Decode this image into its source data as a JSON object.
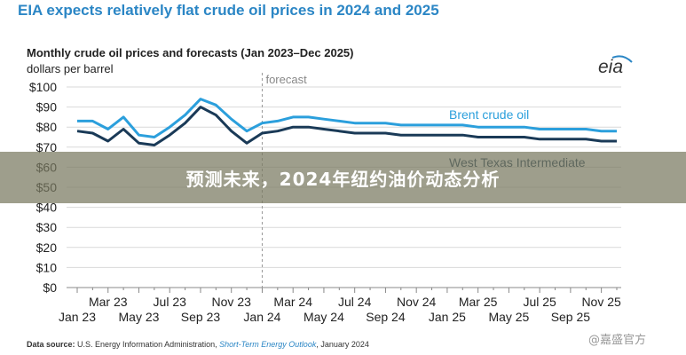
{
  "headline": "EIA expects relatively flat crude oil prices in 2024 and 2025",
  "logo_text": "eia",
  "overlay_caption": "预测未来，2024年纽约油价动态分析",
  "source": {
    "label": "Data source:",
    "org": " U.S. Energy Information Administration, ",
    "publication": "Short-Term Energy Outlook",
    "date": ", January 2024"
  },
  "watermark": "@嘉盛官方",
  "colors": {
    "brent": "#2b9fdc",
    "wti": "#1a3a57",
    "headline": "#2b86c5",
    "grid": "#d9d9d9"
  },
  "chart_data": {
    "type": "line",
    "title": "Monthly crude oil prices and forecasts (Jan 2023–Dec 2025)",
    "ylabel": "dollars per barrel",
    "xlabel": "",
    "ylim": [
      0,
      100
    ],
    "y_ticks": [
      "$0",
      "$10",
      "$20",
      "$30",
      "$40",
      "$50",
      "$60",
      "$70",
      "$80",
      "$90",
      "$100"
    ],
    "x": [
      "Jan 23",
      "Feb 23",
      "Mar 23",
      "Apr 23",
      "May 23",
      "Jun 23",
      "Jul 23",
      "Aug 23",
      "Sep 23",
      "Oct 23",
      "Nov 23",
      "Dec 23",
      "Jan 24",
      "Feb 24",
      "Mar 24",
      "Apr 24",
      "May 24",
      "Jun 24",
      "Jul 24",
      "Aug 24",
      "Sep 24",
      "Oct 24",
      "Nov 24",
      "Dec 24",
      "Jan 25",
      "Feb 25",
      "Mar 25",
      "Apr 25",
      "May 25",
      "Jun 25",
      "Jul 25",
      "Aug 25",
      "Sep 25",
      "Oct 25",
      "Nov 25",
      "Dec 25"
    ],
    "x_tick_labels_upper": [
      "Mar 23",
      "Jul 23",
      "Nov 23",
      "Mar 24",
      "Jul 24",
      "Nov 24",
      "Mar 25",
      "Jul 25",
      "Nov 25"
    ],
    "x_tick_labels_lower": [
      "Jan 23",
      "May 23",
      "Sep 23",
      "Jan 24",
      "May 24",
      "Sep 24",
      "Jan 25",
      "May 25",
      "Sep 25"
    ],
    "forecast_label": "forecast",
    "forecast_start": "Jan 24",
    "series": [
      {
        "name": "Brent crude oil",
        "values": [
          83,
          83,
          79,
          85,
          76,
          75,
          80,
          86,
          94,
          91,
          84,
          78,
          82,
          83,
          85,
          85,
          84,
          83,
          82,
          82,
          82,
          81,
          81,
          81,
          81,
          81,
          80,
          80,
          80,
          80,
          79,
          79,
          79,
          79,
          78,
          78
        ]
      },
      {
        "name": "West Texas Intermediate",
        "values": [
          78,
          77,
          73,
          79,
          72,
          71,
          76,
          82,
          90,
          86,
          78,
          72,
          77,
          78,
          80,
          80,
          79,
          78,
          77,
          77,
          77,
          76,
          76,
          76,
          76,
          76,
          75,
          75,
          75,
          75,
          74,
          74,
          74,
          74,
          73,
          73
        ]
      }
    ],
    "legend_placement": "inline labels next to lines, upper right",
    "grid": true
  }
}
